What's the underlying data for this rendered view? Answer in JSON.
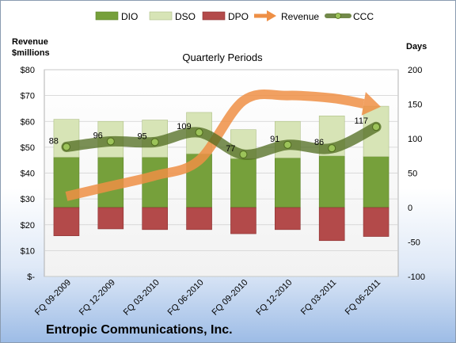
{
  "title": "Entropic Communications, Inc.",
  "chart_data": {
    "type": "bar",
    "subtitle": "Quarterly Periods",
    "categories": [
      "FQ 09-2009",
      "FQ 12-2009",
      "FQ 03-2010",
      "FQ 06-2010",
      "FQ 09-2010",
      "FQ 12-2010",
      "FQ 03-2011",
      "FQ 06-2011"
    ],
    "left_axis": {
      "label_line1": "Revenue",
      "label_line2": "$millions",
      "ylim": [
        0,
        80
      ],
      "ticks": [
        {
          "v": 80,
          "t": "$80"
        },
        {
          "v": 70,
          "t": "$70"
        },
        {
          "v": 60,
          "t": "$60"
        },
        {
          "v": 50,
          "t": "$50"
        },
        {
          "v": 40,
          "t": "$40"
        },
        {
          "v": 30,
          "t": "$30"
        },
        {
          "v": 20,
          "t": "$20"
        },
        {
          "v": 10,
          "t": "$10"
        },
        {
          "v": 0,
          "t": "$-"
        }
      ]
    },
    "right_axis": {
      "label": "Days",
      "ylim": [
        -100,
        200
      ],
      "ticks": [
        {
          "v": 200,
          "t": "200"
        },
        {
          "v": 150,
          "t": "150"
        },
        {
          "v": 100,
          "t": "100"
        },
        {
          "v": 50,
          "t": "50"
        },
        {
          "v": 0,
          "t": "0"
        },
        {
          "v": -50,
          "t": "-50"
        },
        {
          "v": -100,
          "t": "-100"
        }
      ]
    },
    "series": [
      {
        "name": "DIO",
        "axis": "right",
        "kind": "stacked-bar",
        "color": "#76a03b",
        "values": [
          73,
          73,
          73,
          78,
          71,
          72,
          75,
          74
        ]
      },
      {
        "name": "DSO",
        "axis": "right",
        "kind": "stacked-bar",
        "color": "#d7e4b6",
        "values": [
          55,
          52,
          54,
          60,
          42,
          53,
          58,
          73
        ]
      },
      {
        "name": "DPO",
        "axis": "right",
        "kind": "negative-bar",
        "color": "#b34a4a",
        "values": [
          -41,
          -31,
          -32,
          -32,
          -38,
          -32,
          -48,
          -42
        ]
      },
      {
        "name": "Revenue",
        "axis": "left",
        "kind": "arrow-line",
        "color": "#ee8f45",
        "values": [
          31,
          35,
          39,
          45,
          68,
          70,
          69,
          66
        ]
      },
      {
        "name": "CCC",
        "axis": "right",
        "kind": "line",
        "color": "#4f6b1d",
        "values": [
          88,
          96,
          95,
          109,
          77,
          91,
          86,
          117
        ]
      }
    ],
    "ccc_labels": [
      "88",
      "96",
      "95",
      "109",
      "77",
      "91",
      "86",
      "117"
    ],
    "grid": true,
    "legend": "top"
  },
  "colors": {
    "dio": "#76a03b",
    "dso": "#d7e4b6",
    "dpo": "#b34a4a",
    "revenue": "#ee8f45",
    "ccc": "#4f6b1d"
  }
}
